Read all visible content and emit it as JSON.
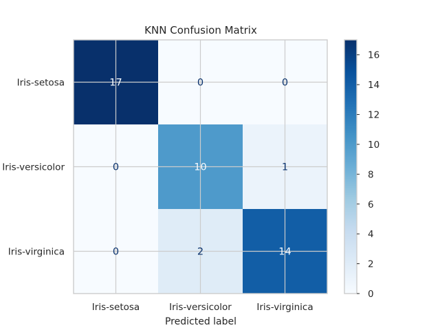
{
  "chart_data": {
    "type": "heatmap",
    "title": "KNN Confusion Matrix",
    "xlabel": "Predicted label",
    "ylabel": "",
    "x_categories": [
      "Iris-setosa",
      "Iris-versicolor",
      "Iris-virginica"
    ],
    "y_categories": [
      "Iris-setosa",
      "Iris-versicolor",
      "Iris-virginica"
    ],
    "values": [
      [
        17,
        0,
        0
      ],
      [
        0,
        10,
        1
      ],
      [
        0,
        2,
        14
      ]
    ],
    "colormap": "Blues",
    "colorbar": {
      "min": 0,
      "max": 17,
      "ticks": [
        0,
        2,
        4,
        6,
        8,
        10,
        12,
        14,
        16
      ]
    },
    "grid": true
  }
}
